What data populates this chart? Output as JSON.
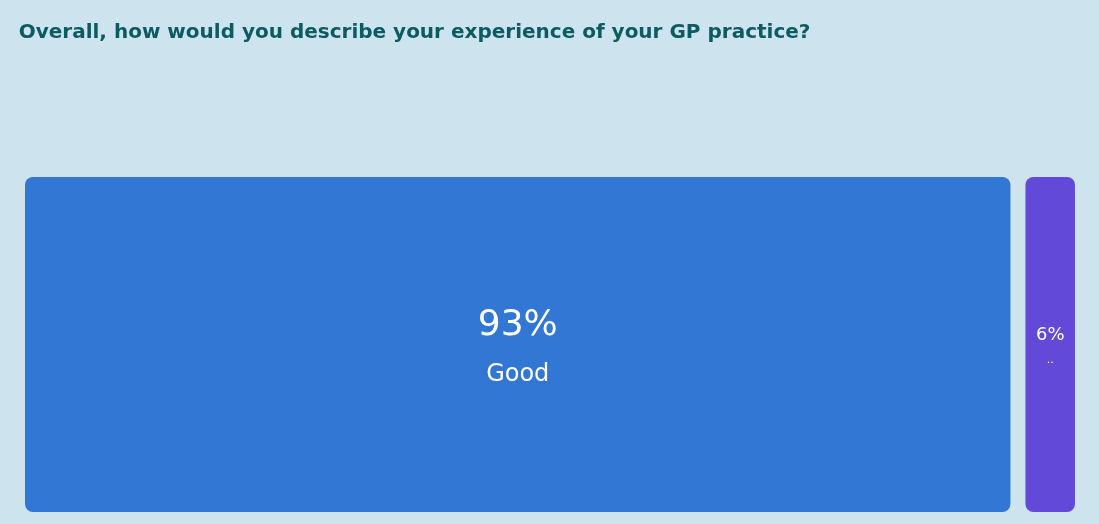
{
  "chart_data": {
    "type": "other",
    "title": "Overall, how would you describe your experience of your GP practice?",
    "categories": [
      "Good",
      ".."
    ],
    "values": [
      93,
      6
    ],
    "value_labels": [
      "93%",
      "6%"
    ],
    "colors": [
      "#3277d4",
      "#6249d8"
    ]
  }
}
